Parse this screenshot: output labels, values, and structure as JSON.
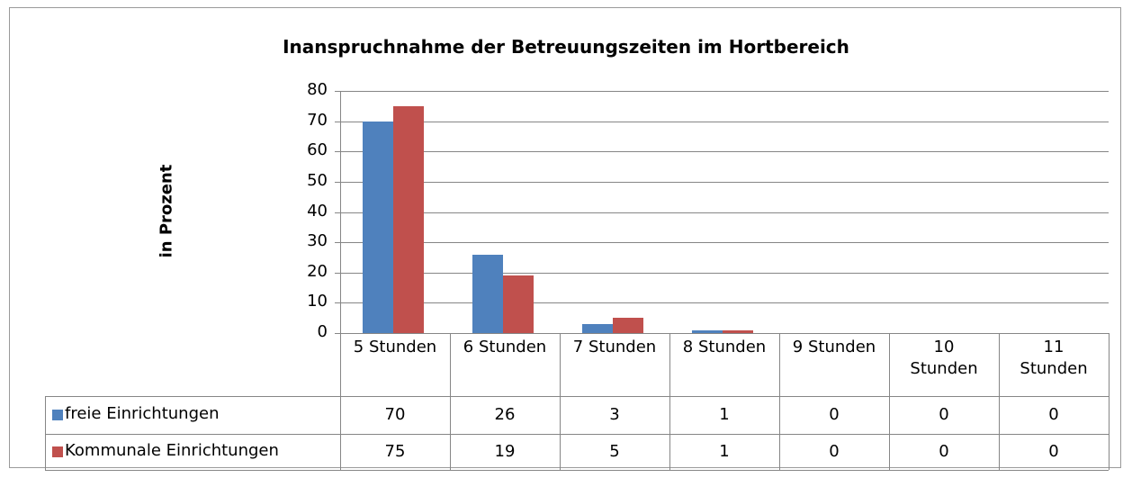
{
  "chart_data": {
    "type": "bar",
    "title": "Inanspruchnahme der Betreuungszeiten  im Hortbereich",
    "ylabel": "in Prozent",
    "categories": [
      "5 Stunden",
      "6 Stunden",
      "7 Stunden",
      "8 Stunden",
      "9 Stunden",
      "10 Stunden",
      "11 Stunden"
    ],
    "series": [
      {
        "name": "freie Einrichtungen",
        "color": "#4f81bd",
        "values": [
          70,
          26,
          3,
          1,
          0,
          0,
          0
        ]
      },
      {
        "name": "Kommunale Einrichtungen",
        "color": "#c0504d",
        "values": [
          75,
          19,
          5,
          1,
          0,
          0,
          0
        ]
      }
    ],
    "ylim": [
      0,
      80
    ],
    "yticks": [
      0,
      10,
      20,
      30,
      40,
      50,
      60,
      70,
      80
    ],
    "grid": true
  }
}
